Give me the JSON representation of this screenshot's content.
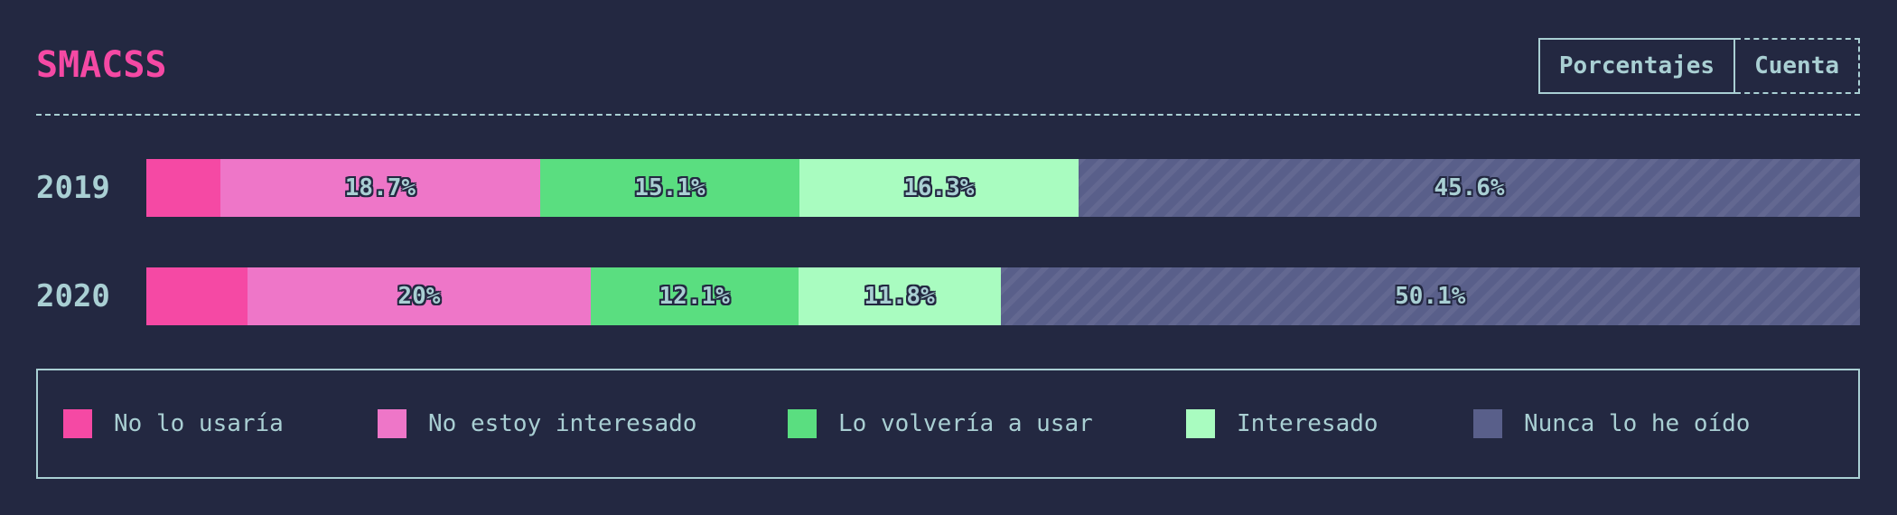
{
  "header": {
    "title": "SMACSS",
    "toggle": {
      "percent_label": "Porcentajes",
      "count_label": "Cuenta",
      "active": "percent"
    }
  },
  "chart_data": {
    "type": "bar",
    "orientation": "horizontal",
    "stacked": true,
    "categories": [
      "2019",
      "2020"
    ],
    "series": [
      {
        "name": "No lo usaría",
        "color": "#f549a4",
        "values": [
          4.3,
          5.9
        ],
        "labels": [
          "",
          ""
        ]
      },
      {
        "name": "No estoy interesado",
        "color": "#ee76c8",
        "values": [
          18.7,
          20.0
        ],
        "labels": [
          "18.7%",
          "20%"
        ]
      },
      {
        "name": "Lo volvería a usar",
        "color": "#5ade80",
        "values": [
          15.1,
          12.1
        ],
        "labels": [
          "15.1%",
          "12.1%"
        ]
      },
      {
        "name": "Interesado",
        "color": "#a9fcc0",
        "values": [
          16.3,
          11.8
        ],
        "labels": [
          "16.3%",
          "11.8%"
        ]
      },
      {
        "name": "Nunca lo he oído",
        "color": "#595f8a",
        "values": [
          45.6,
          50.1
        ],
        "labels": [
          "45.6%",
          "50.1%"
        ],
        "hatched": true
      }
    ],
    "xlim": [
      0,
      100
    ],
    "legend_position": "bottom"
  }
}
